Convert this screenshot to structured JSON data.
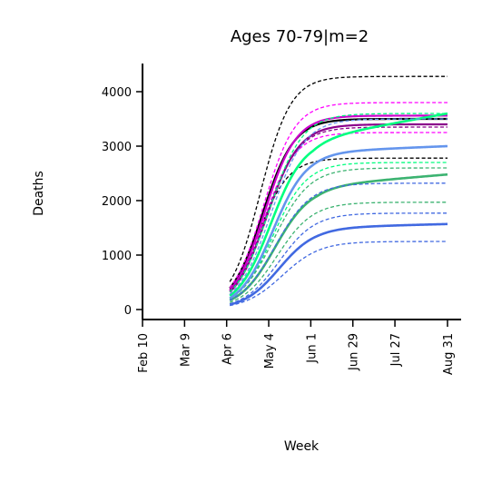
{
  "chart_data": {
    "type": "line",
    "title": "Ages 70-79|m=2",
    "xlabel": "Week",
    "ylabel": "Deaths",
    "x_ticks": [
      "Feb 10",
      "Mar 9",
      "Apr 6",
      "May 4",
      "Jun 1",
      "Jun 29",
      "Jul 27",
      "Aug 31"
    ],
    "y_ticks": [
      0,
      1000,
      2000,
      3000,
      4000
    ],
    "ylim": [
      -200,
      4500
    ],
    "grid": false,
    "x_axis_range_weeks": [
      0,
      29.5
    ],
    "x_unit_note_source": "Week",
    "series": [
      {
        "color": "#000000",
        "style": "dashed",
        "width": 1.3,
        "plateau": 4280,
        "midpoint": 11.2,
        "scale": 1.45
      },
      {
        "color": "#000000",
        "style": "dashed",
        "width": 1.3,
        "plateau": 2780,
        "midpoint": 11.0,
        "scale": 1.45
      },
      {
        "color": "#000000",
        "style": "solid",
        "width": 2.2,
        "plateau": 3500,
        "midpoint": 11.4,
        "scale": 1.5
      },
      {
        "color": "#ff00ff",
        "style": "dashed",
        "width": 1.3,
        "plateau": 3800,
        "midpoint": 11.5,
        "scale": 1.5
      },
      {
        "color": "#ff00ff",
        "style": "dashed",
        "width": 1.3,
        "plateau": 3250,
        "midpoint": 11.5,
        "scale": 1.5
      },
      {
        "color": "#cc00cc",
        "style": "solid",
        "width": 2.2,
        "plateau": 3560,
        "midpoint": 11.6,
        "scale": 1.5
      },
      {
        "color": "#8b008b",
        "style": "dashed",
        "width": 1.3,
        "plateau": 3350,
        "midpoint": 11.7,
        "scale": 1.55
      },
      {
        "color": "#8b008b",
        "style": "solid",
        "width": 2.2,
        "plateau": 3400,
        "midpoint": 11.8,
        "scale": 1.55
      },
      {
        "color": "#00ff7f",
        "style": "solid",
        "width": 2.6,
        "plateau": 3150,
        "midpoint": 12.2,
        "scale": 1.6,
        "tail": 450
      },
      {
        "color": "#00ff7f",
        "style": "dashed",
        "width": 1.3,
        "plateau": 3600,
        "midpoint": 12.0,
        "scale": 1.6
      },
      {
        "color": "#00ff7f",
        "style": "dashed",
        "width": 1.3,
        "plateau": 2700,
        "midpoint": 12.4,
        "scale": 1.6
      },
      {
        "color": "#3cb371",
        "style": "solid",
        "width": 2.6,
        "plateau": 2280,
        "midpoint": 12.6,
        "scale": 1.7,
        "tail": 200
      },
      {
        "color": "#3cb371",
        "style": "dashed",
        "width": 1.3,
        "plateau": 2600,
        "midpoint": 12.5,
        "scale": 1.7
      },
      {
        "color": "#3cb371",
        "style": "dashed",
        "width": 1.3,
        "plateau": 1970,
        "midpoint": 12.8,
        "scale": 1.7
      },
      {
        "color": "#6495ed",
        "style": "solid",
        "width": 2.6,
        "plateau": 2900,
        "midpoint": 12.4,
        "scale": 1.6,
        "tail": 100
      },
      {
        "color": "#6495ed",
        "style": "dashed",
        "width": 1.3,
        "plateau": 3500,
        "midpoint": 12.2,
        "scale": 1.6
      },
      {
        "color": "#4169e1",
        "style": "dashed",
        "width": 1.3,
        "plateau": 2320,
        "midpoint": 12.6,
        "scale": 1.7
      },
      {
        "color": "#4169e1",
        "style": "solid",
        "width": 2.6,
        "plateau": 1510,
        "midpoint": 13.0,
        "scale": 1.7,
        "tail": 60
      },
      {
        "color": "#4169e1",
        "style": "dashed",
        "width": 1.3,
        "plateau": 1770,
        "midpoint": 13.0,
        "scale": 1.7
      },
      {
        "color": "#4169e1",
        "style": "dashed",
        "width": 1.3,
        "plateau": 1250,
        "midpoint": 13.3,
        "scale": 1.8
      }
    ],
    "curve_start_week": 8.3
  }
}
